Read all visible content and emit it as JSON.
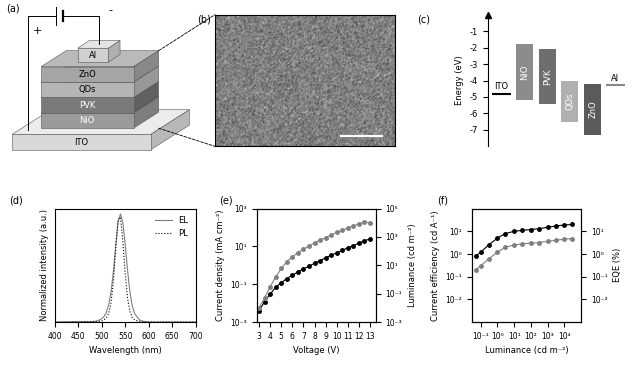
{
  "panels": {
    "a": {
      "label": "(a)",
      "layers": [
        "ITO",
        "NiO",
        "PVK",
        "QDs",
        "ZnO",
        "Al"
      ],
      "terminals": [
        "+",
        "-"
      ]
    },
    "b": {
      "label": "(b)"
    }
  },
  "chart_data": [
    {
      "type": "floating_bar",
      "title": "(c)",
      "y_label": "Energy (eV)",
      "categories": [
        "ITO",
        "NiO",
        "PVK",
        "QDs",
        "ZnO",
        "Al"
      ],
      "high": [
        -4.8,
        -1.8,
        -2.1,
        -4.0,
        -4.2,
        -4.3
      ],
      "low": [
        -4.8,
        -5.2,
        -5.4,
        -6.5,
        -7.3,
        -4.3
      ],
      "colors": [
        "#000000",
        "#8c8c8c",
        "#6e6e6e",
        "#b0b0b0",
        "#5a5a5a",
        "#888888"
      ],
      "ylim": [
        -8,
        0
      ],
      "yticks": [
        -7,
        -6,
        -5,
        -4,
        -3,
        -2,
        -1
      ],
      "tick_labels": "y"
    },
    {
      "type": "line",
      "title": "(d)",
      "x_label": "Wavelength (nm)",
      "y_label": "Normalized intensity (a.u.)",
      "x": [
        400,
        480,
        490,
        500,
        505,
        510,
        515,
        520,
        525,
        530,
        535,
        540,
        545,
        550,
        555,
        560,
        565,
        570,
        580,
        590,
        600,
        700
      ],
      "series": [
        {
          "name": "EL",
          "color": "#808080",
          "line_style": "solid",
          "values": [
            0,
            0.005,
            0.01,
            0.03,
            0.05,
            0.09,
            0.16,
            0.28,
            0.47,
            0.72,
            0.93,
            1.0,
            0.92,
            0.72,
            0.48,
            0.28,
            0.15,
            0.08,
            0.02,
            0.005,
            0,
            0
          ]
        },
        {
          "name": "PL",
          "color": "#000000",
          "line_style": "dotted",
          "values": [
            0,
            0.002,
            0.005,
            0.01,
            0.02,
            0.04,
            0.08,
            0.18,
            0.38,
            0.68,
            0.95,
            0.97,
            0.75,
            0.45,
            0.22,
            0.1,
            0.04,
            0.02,
            0.005,
            0,
            0,
            0
          ]
        }
      ],
      "xlim": [
        400,
        700
      ],
      "xticks": [
        400,
        450,
        500,
        550,
        600,
        650,
        700
      ],
      "ylim": [
        0,
        1.05
      ],
      "legend": "upper right",
      "tick_labels": "x"
    },
    {
      "type": "line",
      "title": "(e)",
      "x_label": "Voltage (V)",
      "y_label": "Current density (mA cm⁻²)",
      "y2_label": "Luminance (cd m⁻²)",
      "log": "y",
      "x": [
        3,
        3.5,
        4,
        4.5,
        5,
        5.5,
        6,
        6.5,
        7,
        7.5,
        8,
        8.5,
        9,
        9.5,
        10,
        10.5,
        11,
        11.5,
        12,
        12.5,
        13
      ],
      "series": [
        {
          "color": "#000000",
          "marker": "circle",
          "line_style": "solid",
          "axis": "y",
          "values": [
            0.004,
            0.012,
            0.03,
            0.07,
            0.12,
            0.2,
            0.3,
            0.45,
            0.65,
            0.9,
            1.3,
            1.8,
            2.5,
            3.4,
            4.6,
            6.2,
            8.5,
            11,
            15,
            20,
            25
          ]
        },
        {
          "color": "#808080",
          "marker": "circle",
          "line_style": "solid",
          "axis": "y2",
          "values": [
            0.01,
            0.05,
            0.3,
            1.5,
            6,
            18,
            40,
            80,
            140,
            230,
            380,
            600,
            900,
            1400,
            2100,
            3000,
            4200,
            6000,
            8500,
            11000,
            10000
          ]
        }
      ],
      "xlim": [
        2.8,
        13.5
      ],
      "xticks": [
        3,
        4,
        5,
        6,
        7,
        8,
        9,
        10,
        11,
        12,
        13
      ],
      "ylim": [
        0.001,
        1000
      ],
      "yticks": [
        {
          "value": 0.001,
          "label": "10⁻³"
        },
        {
          "value": 0.1,
          "label": "10⁻¹"
        },
        {
          "value": 10,
          "label": "10¹"
        },
        {
          "value": 1000,
          "label": "10³"
        }
      ],
      "y2lim": [
        0.001,
        100000
      ],
      "y2ticks": [
        {
          "value": 0.001,
          "label": "10⁻³"
        },
        {
          "value": 0.1,
          "label": "10⁻¹"
        },
        {
          "value": 10,
          "label": "10¹"
        },
        {
          "value": 1000,
          "label": "10³"
        },
        {
          "value": 100000,
          "label": "10⁵"
        }
      ]
    },
    {
      "type": "line",
      "title": "(f)",
      "x_label": "Luminance (cd m⁻²)",
      "y_label": "Current efficiency (cd A⁻¹)",
      "y2_label": "EQE (%)",
      "log": true,
      "x": [
        0.05,
        0.1,
        0.3,
        1,
        3,
        10,
        30,
        100,
        300,
        1000,
        3000,
        10000,
        30000
      ],
      "series": [
        {
          "color": "#000000",
          "marker": "circle",
          "line_style": "solid",
          "axis": "y",
          "values": [
            0.8,
            1.2,
            2.5,
            5,
            8,
            10,
            11,
            12,
            13,
            15,
            17,
            19,
            20
          ]
        },
        {
          "color": "#808080",
          "marker": "circle",
          "line_style": "solid",
          "axis": "y2",
          "values": [
            0.2,
            0.3,
            0.6,
            1.2,
            2,
            2.5,
            2.8,
            3,
            3.2,
            3.6,
            4,
            4.5,
            4.8
          ]
        }
      ],
      "xlim": [
        0.03,
        100000
      ],
      "xticks": [
        {
          "value": 0.1,
          "label": "10⁻¹"
        },
        {
          "value": 1,
          "label": "10⁰"
        },
        {
          "value": 10,
          "label": "10¹"
        },
        {
          "value": 100,
          "label": "10²"
        },
        {
          "value": 1000,
          "label": "10³"
        },
        {
          "value": 10000,
          "label": "10⁴"
        }
      ],
      "ylim": [
        0.001,
        100
      ],
      "yticks": [
        {
          "value": 0.01,
          "label": "10⁻²"
        },
        {
          "value": 0.1,
          "label": "10⁻¹"
        },
        {
          "value": 1,
          "label": "10⁰"
        },
        {
          "value": 10,
          "label": "10¹"
        }
      ],
      "y2lim": [
        0.001,
        100
      ],
      "y2ticks": [
        {
          "value": 0.01,
          "label": "10⁻²"
        },
        {
          "value": 0.1,
          "label": "10⁻¹"
        },
        {
          "value": 1,
          "label": "10⁰"
        },
        {
          "value": 10,
          "label": "10¹"
        }
      ]
    }
  ]
}
